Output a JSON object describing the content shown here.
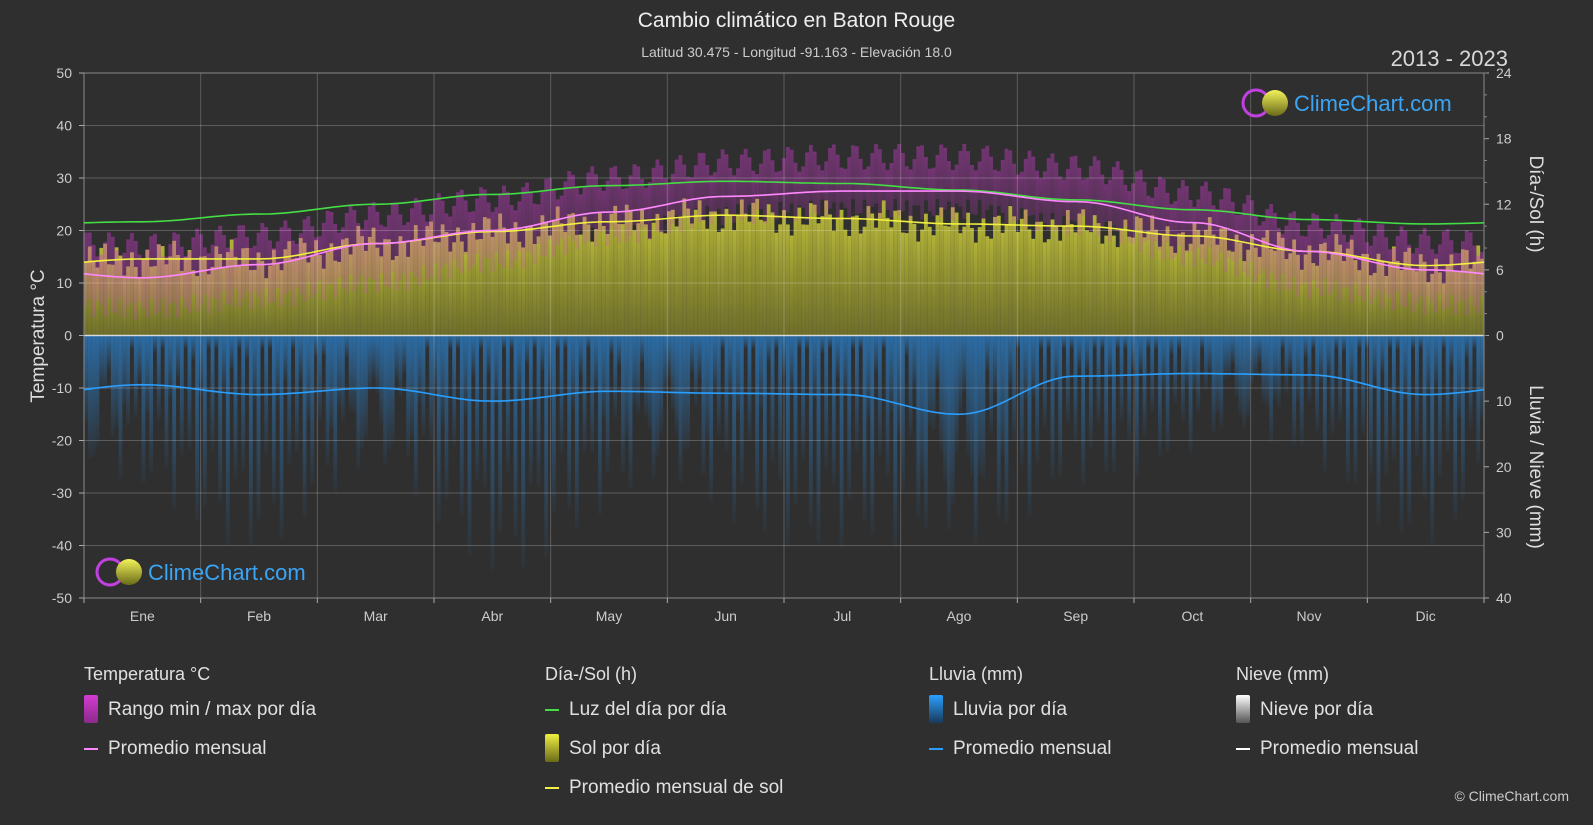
{
  "title": "Cambio climático en Baton Rouge",
  "subtitle": "Latitud 30.475 - Longitud -91.163 - Elevación 18.0",
  "years": "2013 - 2023",
  "copyright": "© ClimeChart.com",
  "watermark": "ClimeChart.com",
  "colors": {
    "background": "#2f2f2f",
    "temp_range": "#d43cd4",
    "temp_avg": "#ff88ff",
    "daylight": "#44dd44",
    "sunshine": "#c9c93a",
    "sunshine_avg": "#f0f040",
    "rain": "#2a7fc9",
    "rain_avg": "#2a9fff",
    "snow_avg": "#ffffff",
    "brand": "#3ba5f5"
  },
  "chart_data": {
    "type": "area",
    "months": [
      "Ene",
      "Feb",
      "Mar",
      "Abr",
      "May",
      "Jun",
      "Jul",
      "Ago",
      "Sep",
      "Oct",
      "Nov",
      "Dic"
    ],
    "left_axis": {
      "label": "Temperatura °C",
      "ticks": [
        "50",
        "40",
        "30",
        "20",
        "10",
        "0",
        "-10",
        "-20",
        "-30",
        "-40",
        "-50"
      ],
      "range": [
        -50,
        50
      ]
    },
    "right_axis_top": {
      "label": "Día-/Sol (h)",
      "ticks": [
        "24",
        "18",
        "12",
        "6",
        "0"
      ],
      "range": [
        0,
        24
      ]
    },
    "right_axis_bottom": {
      "label": "Lluvia / Nieve (mm)",
      "ticks": [
        "0",
        "10",
        "20",
        "30",
        "40"
      ],
      "range": [
        0,
        40
      ]
    },
    "series": [
      {
        "name": "Rango min / max por día",
        "unit": "°C",
        "min": [
          5,
          7,
          10,
          14,
          19,
          23,
          24,
          24,
          21,
          15,
          9,
          6
        ],
        "max": [
          17,
          19,
          23,
          26,
          30,
          33,
          34,
          34,
          32,
          27,
          21,
          18
        ]
      },
      {
        "name": "Promedio mensual",
        "unit": "°C",
        "values": [
          11.0,
          13.5,
          17.5,
          20.0,
          23.5,
          26.5,
          27.5,
          27.5,
          25.5,
          21.5,
          16.0,
          12.5
        ]
      },
      {
        "name": "Luz del día por día",
        "unit": "h",
        "values": [
          10.4,
          11.1,
          12.0,
          12.9,
          13.7,
          14.1,
          13.9,
          13.3,
          12.4,
          11.5,
          10.6,
          10.2
        ]
      },
      {
        "name": "Promedio mensual de sol",
        "unit": "h",
        "values": [
          7.0,
          7.0,
          8.4,
          9.5,
          10.4,
          11.0,
          10.7,
          10.2,
          10.0,
          9.1,
          7.7,
          6.4
        ]
      },
      {
        "name": "Promedio mensual",
        "unit": "mm",
        "values": [
          7.5,
          9.0,
          8.0,
          10.0,
          8.5,
          8.8,
          9.0,
          12.0,
          6.2,
          5.8,
          6.0,
          9.0
        ]
      }
    ]
  },
  "legend": {
    "temperature": {
      "title": "Temperatura °C",
      "range": "Rango min / max por día",
      "avg": "Promedio mensual"
    },
    "sun": {
      "title": "Día-/Sol (h)",
      "daylight": "Luz del día por día",
      "sunshine": "Sol por día",
      "sun_avg": "Promedio mensual de sol"
    },
    "rain": {
      "title": "Lluvia (mm)",
      "rain": "Lluvia por día",
      "avg": "Promedio mensual"
    },
    "snow": {
      "title": "Nieve (mm)",
      "snow": "Nieve por día",
      "avg": "Promedio mensual"
    }
  }
}
